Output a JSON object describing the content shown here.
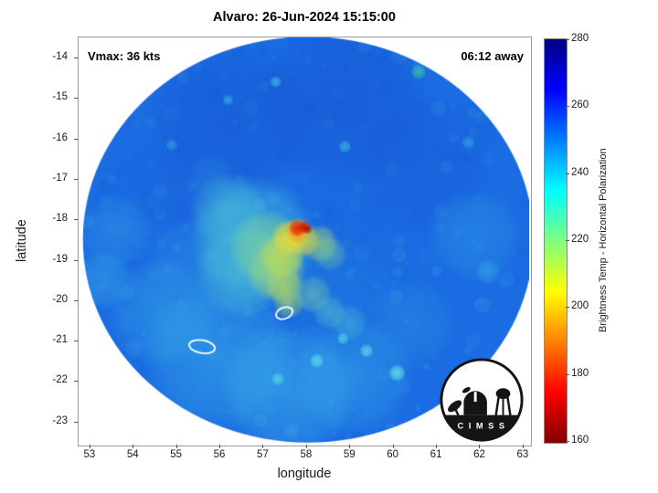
{
  "logo": {
    "text": "C I M S S"
  },
  "chart_data": {
    "type": "heatmap",
    "title": "Alvaro: 26-Jun-2024 15:15:00",
    "storm_name": "Alvaro",
    "timestamp": "26-Jun-2024 15:15:00",
    "annotations": {
      "vmax": "Vmax: 36 kts",
      "vmax_kts": 36,
      "eta": "06:12 away",
      "time_away_hhmm": "06:12"
    },
    "axes": {
      "xlabel": "longitude",
      "ylabel": "latitude",
      "x_ticks": [
        53,
        54,
        55,
        56,
        57,
        58,
        59,
        60,
        61,
        62,
        63
      ],
      "y_ticks": [
        -14,
        -15,
        -16,
        -17,
        -18,
        -19,
        -20,
        -21,
        -22,
        -23
      ],
      "xlim": [
        52.75,
        63.15
      ],
      "ylim": [
        -13.5,
        -23.55
      ]
    },
    "colorbar": {
      "label": "Brightness Temp - Horizontal Polarization",
      "min": 160,
      "max": 280,
      "ticks": [
        280,
        260,
        240,
        220,
        200,
        180,
        160
      ],
      "gradient": [
        {
          "pos": 0,
          "color": "#000085"
        },
        {
          "pos": 12.5,
          "color": "#0000ff"
        },
        {
          "pos": 37.5,
          "color": "#00ffff"
        },
        {
          "pos": 62.5,
          "color": "#ffff00"
        },
        {
          "pos": 87.5,
          "color": "#ff0000"
        },
        {
          "pos": 100,
          "color": "#800000"
        }
      ]
    },
    "swath": {
      "center_lon": 58.05,
      "center_lat": -18.5,
      "rx_deg": 5.2,
      "ry_deg": 5.02,
      "base_color": "#1b6ce2",
      "blob_format": [
        "lon",
        "lat",
        "radius_deg",
        "color",
        "alpha"
      ],
      "blobs": [
        [
          56.3,
          -15.6,
          2.0,
          "#1454d0",
          0.5
        ],
        [
          58.9,
          -15.1,
          2.1,
          "#124ecc",
          0.45
        ],
        [
          60.8,
          -16.6,
          1.7,
          "#1656d4",
          0.4
        ],
        [
          54.9,
          -17.1,
          1.3,
          "#1a60da",
          0.4
        ],
        [
          59.7,
          -17.8,
          1.4,
          "#1a64dc",
          0.35
        ],
        [
          61.9,
          -18.4,
          1.1,
          "#2f9ce2",
          0.45
        ],
        [
          53.6,
          -18.3,
          0.9,
          "#2f96e2",
          0.5
        ],
        [
          53.3,
          -19.5,
          0.7,
          "#3aaae6",
          0.5
        ],
        [
          54.7,
          -20.3,
          1.3,
          "#36ace6",
          0.5
        ],
        [
          56.0,
          -21.4,
          1.8,
          "#3cb6e8",
          0.5
        ],
        [
          57.6,
          -22.2,
          1.6,
          "#46c2ea",
          0.45
        ],
        [
          59.1,
          -21.9,
          1.4,
          "#3eb8e8",
          0.4
        ],
        [
          60.4,
          -20.6,
          1.1,
          "#2f9ce0",
          0.35
        ],
        [
          58.7,
          -19.8,
          1.3,
          "#2184de",
          0.35
        ],
        [
          55.3,
          -19.0,
          1.0,
          "#2e96e2",
          0.4
        ],
        [
          55.8,
          -16.9,
          0.5,
          "#2a88de",
          0.4
        ],
        [
          56.8,
          -18.5,
          1.5,
          "#4cc8da",
          0.6
        ],
        [
          56.5,
          -19.3,
          1.1,
          "#55ccd2",
          0.55
        ],
        [
          56.2,
          -17.8,
          0.9,
          "#54ccd4",
          0.5
        ],
        [
          57.1,
          -18.7,
          0.9,
          "#7ed49a",
          0.75
        ],
        [
          57.3,
          -19.3,
          0.7,
          "#9cd878",
          0.7
        ],
        [
          57.45,
          -18.9,
          0.55,
          "#c2dc52",
          0.8
        ],
        [
          57.5,
          -19.65,
          0.45,
          "#b4d85e",
          0.7
        ],
        [
          57.6,
          -20.05,
          0.38,
          "#a6d468",
          0.65
        ],
        [
          57.62,
          -18.45,
          0.42,
          "#eede32",
          0.9
        ],
        [
          57.95,
          -18.52,
          0.38,
          "#e6d238",
          0.8
        ],
        [
          57.82,
          -18.28,
          0.3,
          "#f59a16",
          0.95
        ],
        [
          57.8,
          -18.22,
          0.2,
          "#e22807",
          1
        ],
        [
          57.96,
          -18.2,
          0.15,
          "#cf1804",
          1
        ],
        [
          58.05,
          -18.26,
          0.1,
          "#a31003",
          1
        ],
        [
          58.3,
          -18.6,
          0.45,
          "#b8d85a",
          0.6
        ],
        [
          58.55,
          -18.85,
          0.4,
          "#7cd0a0",
          0.5
        ],
        [
          58.15,
          -19.85,
          0.45,
          "#7cd0a4",
          0.55
        ],
        [
          58.55,
          -20.3,
          0.4,
          "#60ccc4",
          0.5
        ],
        [
          59.0,
          -20.55,
          0.42,
          "#50c4d4",
          0.45
        ],
        [
          60.1,
          -21.8,
          0.2,
          "#62e4ea",
          0.85
        ],
        [
          59.4,
          -21.25,
          0.16,
          "#5ee0ea",
          0.8
        ],
        [
          58.25,
          -21.5,
          0.17,
          "#5ee0ea",
          0.8
        ],
        [
          57.35,
          -21.95,
          0.15,
          "#58dcea",
          0.75
        ],
        [
          58.85,
          -20.95,
          0.14,
          "#58dcea",
          0.7
        ],
        [
          57.3,
          -14.6,
          0.14,
          "#44c8e8",
          0.7
        ],
        [
          58.9,
          -16.2,
          0.15,
          "#44c8e8",
          0.65
        ],
        [
          60.6,
          -14.35,
          0.18,
          "#38c8a8",
          0.8
        ],
        [
          56.2,
          -15.05,
          0.13,
          "#40c4e8",
          0.6
        ],
        [
          61.75,
          -16.1,
          0.16,
          "#40bce8",
          0.55
        ],
        [
          54.9,
          -16.15,
          0.14,
          "#3cb8e6",
          0.55
        ],
        [
          62.2,
          -19.3,
          0.3,
          "#38b0e6",
          0.5
        ]
      ],
      "contour_format": [
        "lon",
        "lat",
        "rx_deg",
        "ry_deg",
        "rot_deg"
      ],
      "contours": [
        [
          57.5,
          -20.32,
          0.2,
          0.13,
          -20
        ],
        [
          55.6,
          -21.15,
          0.3,
          0.15,
          10
        ]
      ],
      "noise": {
        "seed": 13,
        "count": 420,
        "colors": [
          "#0d4cc6",
          "#66d4f0",
          "#1668e0"
        ]
      },
      "streaks": {
        "count": 34,
        "from_deg": 95,
        "to_deg": 235,
        "color": "#0a46b4",
        "alpha": 0.055
      }
    }
  }
}
